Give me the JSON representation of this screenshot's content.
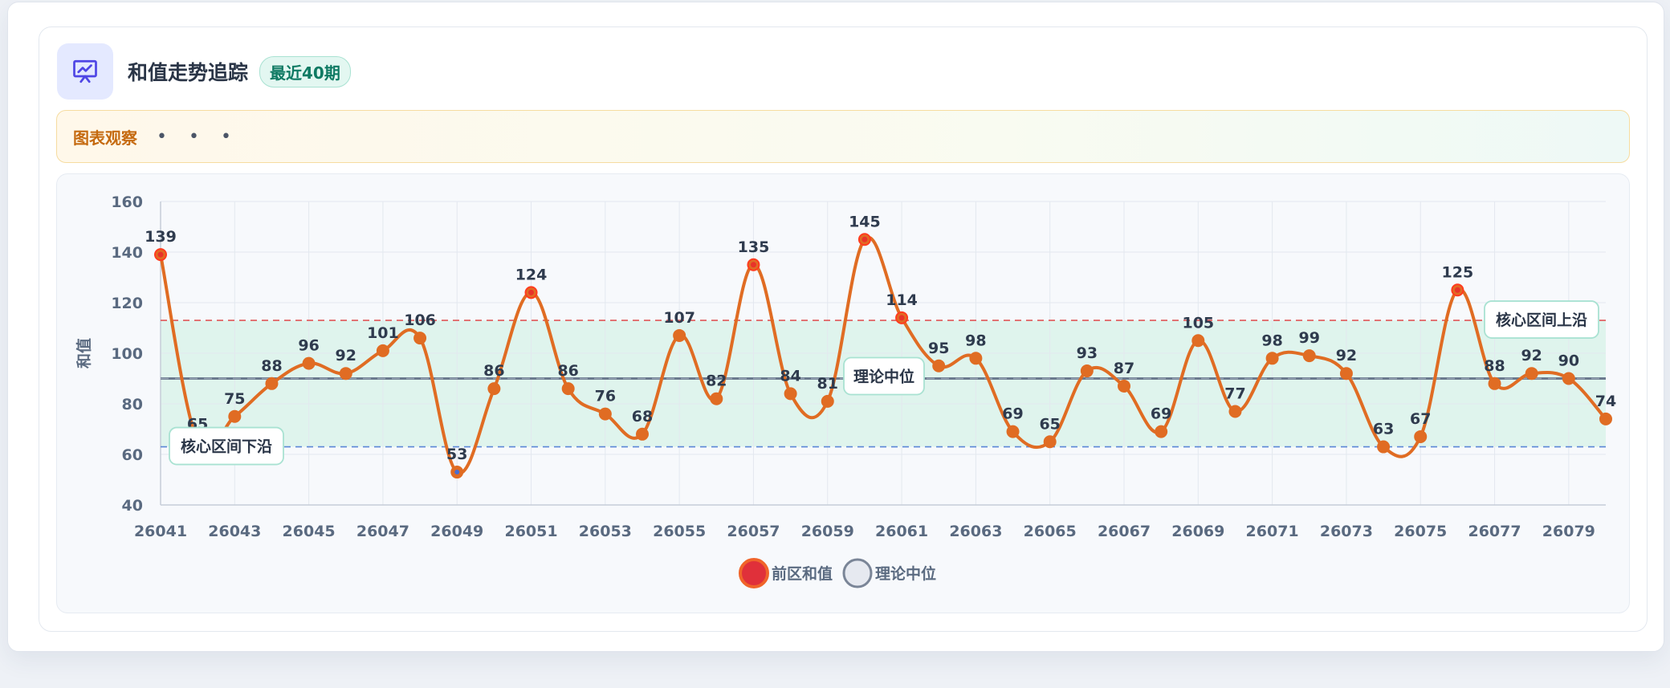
{
  "header": {
    "title": "和值走势追踪",
    "badge": "最近40期",
    "icon": "presentation-chart-icon"
  },
  "notice": {
    "title": "图表观察",
    "dots": "• • •"
  },
  "colors": {
    "line": "#e06c23",
    "point": "#e06c23",
    "high_point": "#f0461e",
    "median_line": "#6b7a8e",
    "upper_line": "#e05757",
    "lower_line": "#5b86d6",
    "band_fill": "#d7f1e8",
    "legend_series": "#e0303a"
  },
  "chart_data": {
    "type": "line",
    "ylabel": "和值",
    "ylim": [
      40,
      160
    ],
    "yticks": [
      40,
      60,
      80,
      100,
      120,
      140,
      160
    ],
    "x": [
      26041,
      26042,
      26043,
      26044,
      26045,
      26046,
      26047,
      26048,
      26049,
      26050,
      26051,
      26052,
      26053,
      26054,
      26055,
      26056,
      26057,
      26058,
      26059,
      26060,
      26061,
      26062,
      26063,
      26064,
      26065,
      26066,
      26067,
      26068,
      26069,
      26070,
      26071,
      26072,
      26073,
      26074,
      26075,
      26076,
      26077,
      26078,
      26079,
      26080
    ],
    "xtick_labels": [
      "26041",
      "26043",
      "26045",
      "26047",
      "26049",
      "26051",
      "26053",
      "26055",
      "26057",
      "26059",
      "26061",
      "26063",
      "26065",
      "26067",
      "26069",
      "26071",
      "26073",
      "26075",
      "26077",
      "26079"
    ],
    "series": [
      {
        "name": "前区和值",
        "values": [
          139,
          65,
          75,
          88,
          96,
          92,
          101,
          106,
          53,
          86,
          124,
          86,
          76,
          68,
          107,
          82,
          135,
          84,
          81,
          145,
          114,
          95,
          98,
          69,
          65,
          93,
          87,
          69,
          105,
          77,
          98,
          99,
          92,
          63,
          67,
          125,
          88,
          92,
          90,
          74
        ]
      }
    ],
    "reference_lines": {
      "median": 90,
      "upper": 113,
      "lower": 63
    },
    "annotations": {
      "median_label": "理论中位",
      "upper_label": "核心区间上沿",
      "lower_label": "核心区间下沿"
    },
    "legend": [
      "前区和值",
      "理论中位"
    ],
    "legend_position": "bottom-center",
    "grid": true
  }
}
